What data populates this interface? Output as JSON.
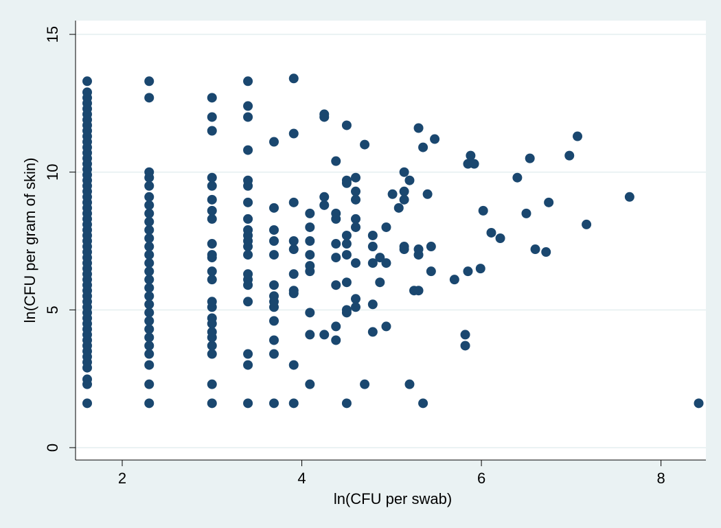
{
  "chart_data": {
    "type": "scatter",
    "x_label": "ln(CFU per swab)",
    "y_label": "ln(CFU per gram of skin)",
    "color": "#1a476f",
    "xlim": [
      1.48,
      8.5
    ],
    "ylim": [
      -0.45,
      15.5
    ],
    "xticks": [
      2,
      4,
      6,
      8
    ],
    "yticks": [
      0,
      5,
      10,
      15
    ],
    "grid": true,
    "x": [
      1.61,
      1.61,
      1.61,
      1.61,
      1.61,
      1.61,
      1.61,
      1.61,
      1.61,
      1.61,
      1.61,
      1.61,
      1.61,
      1.61,
      1.61,
      1.61,
      1.61,
      1.61,
      1.61,
      1.61,
      1.61,
      1.61,
      1.61,
      1.61,
      1.61,
      1.61,
      1.61,
      1.61,
      1.61,
      1.61,
      1.61,
      1.61,
      1.61,
      1.61,
      1.61,
      1.61,
      1.61,
      1.61,
      1.61,
      1.61,
      1.61,
      1.61,
      1.61,
      1.61,
      1.61,
      1.61,
      1.61,
      1.61,
      1.61,
      1.61,
      1.61,
      1.61,
      1.61,
      1.61,
      1.61,
      2.3,
      2.3,
      2.3,
      2.3,
      2.3,
      2.3,
      2.3,
      2.3,
      2.3,
      2.3,
      2.3,
      2.3,
      2.3,
      2.3,
      2.3,
      2.3,
      2.3,
      2.3,
      2.3,
      2.3,
      2.3,
      2.3,
      2.3,
      2.3,
      2.3,
      2.3,
      2.3,
      2.3,
      3.0,
      3.0,
      3.0,
      3.0,
      3.0,
      3.0,
      3.0,
      3.0,
      3.0,
      3.0,
      3.0,
      3.0,
      3.0,
      3.0,
      3.0,
      3.0,
      3.0,
      3.0,
      3.0,
      3.0,
      3.0,
      3.0,
      3.0,
      3.4,
      3.4,
      3.4,
      3.4,
      3.4,
      3.4,
      3.4,
      3.4,
      3.4,
      3.4,
      3.4,
      3.4,
      3.4,
      3.4,
      3.4,
      3.4,
      3.4,
      3.4,
      3.4,
      3.4,
      3.69,
      3.69,
      3.69,
      3.69,
      3.69,
      3.69,
      3.69,
      3.69,
      3.69,
      3.69,
      3.69,
      3.69,
      3.69,
      3.91,
      3.91,
      3.91,
      3.91,
      3.91,
      3.91,
      3.91,
      3.91,
      3.91,
      3.91,
      4.09,
      4.09,
      4.09,
      4.09,
      4.09,
      4.09,
      4.09,
      4.09,
      4.09,
      4.25,
      4.25,
      4.25,
      4.25,
      4.25,
      4.38,
      4.38,
      4.38,
      4.38,
      4.38,
      4.38,
      4.38,
      4.38,
      4.5,
      4.5,
      4.5,
      4.5,
      4.5,
      4.5,
      4.5,
      4.5,
      4.5,
      4.5,
      4.6,
      4.6,
      4.6,
      4.6,
      4.6,
      4.6,
      4.6,
      4.6,
      4.7,
      4.7,
      4.79,
      4.79,
      4.79,
      4.79,
      4.79,
      4.87,
      4.87,
      4.94,
      4.94,
      4.94,
      5.01,
      5.08,
      5.14,
      5.14,
      5.14,
      5.14,
      5.14,
      5.2,
      5.2,
      5.25,
      5.3,
      5.3,
      5.3,
      5.3,
      5.35,
      5.35,
      5.4,
      5.44,
      5.44,
      5.48,
      5.7,
      5.82,
      5.82,
      5.85,
      5.85,
      5.88,
      5.92,
      5.99,
      6.02,
      6.11,
      6.21,
      6.4,
      6.5,
      6.54,
      6.6,
      6.72,
      6.75,
      6.98,
      7.07,
      7.17,
      7.65,
      8.42
    ],
    "values": [
      1.61,
      2.3,
      2.48,
      2.9,
      3.1,
      3.3,
      3.5,
      3.7,
      3.9,
      4.1,
      4.3,
      4.5,
      4.7,
      4.9,
      5.1,
      5.3,
      5.5,
      5.7,
      5.9,
      6.1,
      6.3,
      6.5,
      6.7,
      6.9,
      7.1,
      7.3,
      7.5,
      7.7,
      7.9,
      8.1,
      8.3,
      8.5,
      8.7,
      8.9,
      9.1,
      9.3,
      9.5,
      9.7,
      9.9,
      10.1,
      10.3,
      10.5,
      10.7,
      10.9,
      11.1,
      11.3,
      11.5,
      11.7,
      11.9,
      12.1,
      12.3,
      12.5,
      12.7,
      12.9,
      13.3,
      1.61,
      2.3,
      3.0,
      3.4,
      3.7,
      4.0,
      4.3,
      4.6,
      4.9,
      5.2,
      5.5,
      5.8,
      6.1,
      6.4,
      6.7,
      7.0,
      7.3,
      7.6,
      7.9,
      8.2,
      8.5,
      8.8,
      9.1,
      9.5,
      9.8,
      10.0,
      12.7,
      13.3,
      1.61,
      2.3,
      3.4,
      3.7,
      4.0,
      4.2,
      4.5,
      4.7,
      5.1,
      5.3,
      6.1,
      6.4,
      6.9,
      7.0,
      7.4,
      8.3,
      8.6,
      9.0,
      9.5,
      9.8,
      11.5,
      12.0,
      12.7,
      1.61,
      3.0,
      3.4,
      5.3,
      5.9,
      6.1,
      6.3,
      7.0,
      7.3,
      7.5,
      7.7,
      7.9,
      8.3,
      8.9,
      9.5,
      9.7,
      10.8,
      12.0,
      12.4,
      13.3,
      1.61,
      3.4,
      3.9,
      4.6,
      5.1,
      5.3,
      5.5,
      5.9,
      7.0,
      7.5,
      7.9,
      8.7,
      11.1,
      1.61,
      3.0,
      5.6,
      5.7,
      6.3,
      7.2,
      7.5,
      8.9,
      11.4,
      13.4,
      2.3,
      4.1,
      4.9,
      6.4,
      6.6,
      7.0,
      7.5,
      8.0,
      8.5,
      4.1,
      8.8,
      9.1,
      12.0,
      12.1,
      3.9,
      4.4,
      5.9,
      6.9,
      7.4,
      8.3,
      8.5,
      10.4,
      1.61,
      4.9,
      5.0,
      6.0,
      7.0,
      7.4,
      7.7,
      9.6,
      9.7,
      11.7,
      5.1,
      5.4,
      6.7,
      8.0,
      8.3,
      9.0,
      9.3,
      9.8,
      2.3,
      11.0,
      4.2,
      5.2,
      6.7,
      7.3,
      7.7,
      6.0,
      6.9,
      4.4,
      6.7,
      8.0,
      9.2,
      8.7,
      7.2,
      7.3,
      9.0,
      9.3,
      10.0,
      2.3,
      9.7,
      5.7,
      5.7,
      7.0,
      7.2,
      11.6,
      1.61,
      10.9,
      9.2,
      6.4,
      7.3,
      11.2,
      6.1,
      3.7,
      4.1,
      6.4,
      10.3,
      10.6,
      10.3,
      6.5,
      8.6,
      7.8,
      7.6,
      9.8,
      8.5,
      10.5,
      7.2,
      7.1,
      8.9,
      10.6,
      11.3,
      8.1,
      9.1,
      1.61
    ]
  }
}
